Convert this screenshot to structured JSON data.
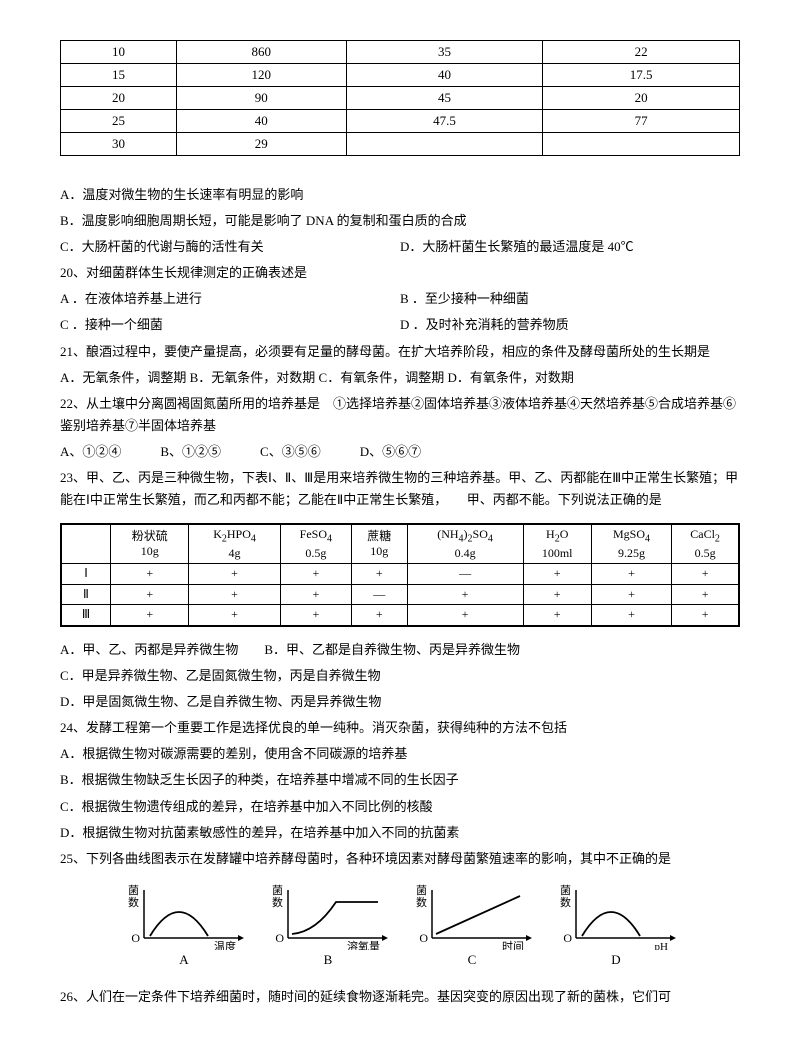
{
  "table1": {
    "rows": [
      [
        "10",
        "860",
        "35",
        "22"
      ],
      [
        "15",
        "120",
        "40",
        "17.5"
      ],
      [
        "20",
        "90",
        "45",
        "20"
      ],
      [
        "25",
        "40",
        "47.5",
        "77"
      ],
      [
        "30",
        "29",
        "",
        ""
      ]
    ]
  },
  "q19_opts": {
    "A": "A．温度对微生物的生长速率有明显的影响",
    "B": "B．温度影响细胞周期长短，可能是影响了 DNA 的复制和蛋白质的合成",
    "C": "C．大肠杆菌的代谢与酶的活性有关",
    "D": "D．大肠杆菌生长繁殖的最适温度是 40℃"
  },
  "q20": {
    "stem": "20、对细菌群体生长规律测定的正确表述是",
    "A": "A ．在液体培养基上进行",
    "B": "B ．至少接种一种细菌",
    "C": "C ．接种一个细菌",
    "D": "D ．及时补充消耗的营养物质"
  },
  "q21": {
    "stem": "21、酿酒过程中，要使产量提高，必须要有足量的酵母菌。在扩大培养阶段，相应的条件及酵母菌所处的生长期是",
    "opts": "A．无氧条件，调整期 B．无氧条件，对数期 C．有氧条件，调整期 D．有氧条件，对数期"
  },
  "q22": {
    "stem": "22、从土壤中分离圆褐固氮菌所用的培养基是　①选择培养基②固体培养基③液体培养基④天然培养基⑤合成培养基⑥鉴别培养基⑦半固体培养基",
    "opts": "A、①②④　　　B、①②⑤　　　C、③⑤⑥　　　D、⑤⑥⑦"
  },
  "q23": {
    "stem1": "23、甲、乙、丙是三种微生物，下表Ⅰ、Ⅱ、Ⅲ是用来培养微生物的三种培养基。甲、乙、丙都能在Ⅲ中正常生长繁殖；甲能在Ⅰ中正常生长繁殖，而乙和丙都不能；乙能在Ⅱ中正常生长繁殖，　　甲、丙都不能。下列说法正确的是",
    "A": "A．甲、乙、丙都是异养微生物　　B．甲、乙都是自养微生物、丙是异养微生物",
    "C": "C．甲是异养微生物、乙是固氮微生物，丙是自养微生物",
    "D": "D．甲是固氮微生物、乙是自养微生物、丙是异养微生物"
  },
  "mediaTable": {
    "headers": [
      "",
      "粉状硫 10g",
      "K₂HPO₄ 4g",
      "FeSO₄ 0.5g",
      "蔗糖 10g",
      "(NH₄)₂SO₄ 0.4g",
      "H₂O 100ml",
      "MgSO₄ 9.25g",
      "CaCl₂ 0.5g"
    ],
    "rows": [
      [
        "Ⅰ",
        "+",
        "+",
        "+",
        "+",
        "—",
        "+",
        "+",
        "+"
      ],
      [
        "Ⅱ",
        "+",
        "+",
        "+",
        "—",
        "+",
        "+",
        "+",
        "+"
      ],
      [
        "Ⅲ",
        "+",
        "+",
        "+",
        "+",
        "+",
        "+",
        "+",
        "+"
      ]
    ]
  },
  "q24": {
    "stem": "24、发酵工程第一个重要工作是选择优良的单一纯种。消灭杂菌，获得纯种的方法不包括",
    "A": "A．根据微生物对碳源需要的差别，使用含不同碳源的培养基",
    "B": "B．根据微生物缺乏生长因子的种类，在培养基中增减不同的生长因子",
    "C": "C．根据微生物遗传组成的差异，在培养基中加入不同比例的核酸",
    "D": "D．根据微生物对抗菌素敏感性的差异，在培养基中加入不同的抗菌素"
  },
  "q25": {
    "stem": "25、下列各曲线图表示在发酵罐中培养酵母菌时，各种环境因素对酵母菌繁殖速率的影响，其中不正确的是",
    "ylabel": "菌数",
    "charts": [
      {
        "label": "A",
        "xlabel": "温度",
        "type": "bell"
      },
      {
        "label": "B",
        "xlabel": "溶氧量",
        "type": "saturate"
      },
      {
        "label": "C",
        "xlabel": "时间",
        "type": "linear"
      },
      {
        "label": "D",
        "xlabel": "pH",
        "type": "bell"
      }
    ],
    "colors": {
      "axis": "#000000",
      "curve": "#000000",
      "bg": "#ffffff"
    },
    "axis_stroke": 1.5,
    "curve_stroke": 1.8
  },
  "q26": {
    "stem": "26、人们在一定条件下培养细菌时，随时间的延续食物逐渐耗完。基因突变的原因出现了新的菌株，它们可"
  }
}
